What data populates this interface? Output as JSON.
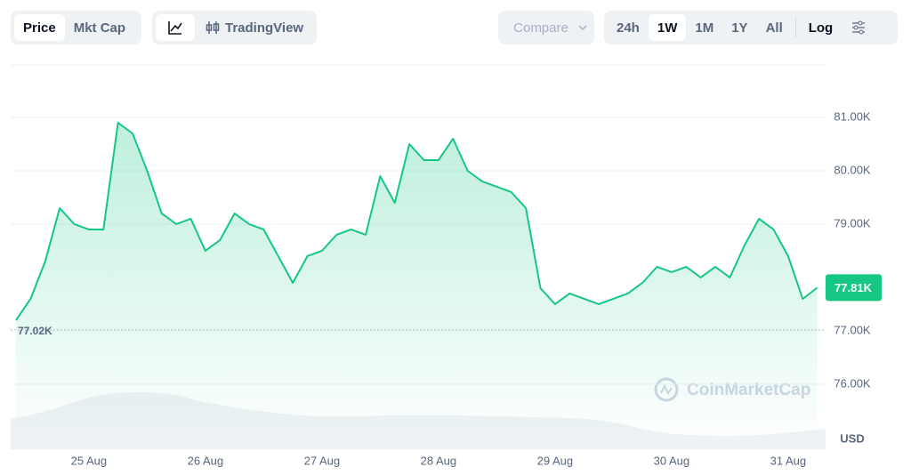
{
  "toolbar": {
    "metric": [
      "Price",
      "Mkt Cap"
    ],
    "style": "TradingView",
    "compare": "Compare",
    "ranges": [
      "24h",
      "1W",
      "1M",
      "1Y",
      "All"
    ],
    "scale": "Log"
  },
  "watermark": "CoinMarketCap",
  "chart_data": {
    "type": "line",
    "color": "#16c784",
    "categories": [
      null,
      null,
      null,
      null,
      null,
      "25 Aug",
      null,
      null,
      null,
      null,
      null,
      null,
      null,
      "26 Aug",
      null,
      null,
      null,
      null,
      null,
      null,
      null,
      "27 Aug",
      null,
      null,
      null,
      null,
      null,
      null,
      null,
      "28 Aug",
      null,
      null,
      null,
      null,
      null,
      null,
      null,
      "29 Aug",
      null,
      null,
      null,
      null,
      null,
      null,
      null,
      "30 Aug",
      null,
      null,
      null,
      null,
      null,
      null,
      null,
      "31 Aug",
      null,
      null
    ],
    "values": [
      77200,
      77600,
      78300,
      79300,
      79000,
      78900,
      78900,
      80900,
      80700,
      80000,
      79200,
      79000,
      79100,
      78500,
      78700,
      79200,
      79000,
      78900,
      78400,
      77900,
      78400,
      78500,
      78800,
      78900,
      78800,
      79900,
      79400,
      80500,
      80200,
      80200,
      80600,
      80000,
      79800,
      79700,
      79600,
      79300,
      77800,
      77500,
      77700,
      77600,
      77500,
      77600,
      77700,
      77900,
      78200,
      78100,
      78200,
      78000,
      78200,
      78000,
      78600,
      79100,
      78900,
      78400,
      77600,
      77810
    ],
    "value_labels": [
      null,
      null,
      null,
      null,
      null,
      null,
      null,
      null,
      null,
      null,
      null,
      null,
      null,
      null,
      null,
      null,
      null,
      null,
      null,
      null,
      null,
      null,
      null,
      null,
      null,
      null,
      null,
      null,
      null,
      null,
      null,
      null,
      null,
      null,
      null,
      null,
      null,
      null,
      null,
      null,
      null,
      null,
      null,
      null,
      null,
      null,
      null,
      null,
      null,
      null,
      null,
      null,
      null,
      null,
      null,
      "77.81K"
    ],
    "reference_line": {
      "value": 77020,
      "label": "77.02K"
    },
    "ylim": [
      74783,
      81950
    ],
    "yticks": [
      {
        "value": 76000,
        "label": "76.00K"
      },
      {
        "value": 77000,
        "label": "77.00K"
      },
      {
        "value": 79000,
        "label": "79.00K"
      },
      {
        "value": 80000,
        "label": "80.00K"
      },
      {
        "value": 81000,
        "label": "81.00K"
      }
    ],
    "y_unit": "USD",
    "grid": true
  }
}
